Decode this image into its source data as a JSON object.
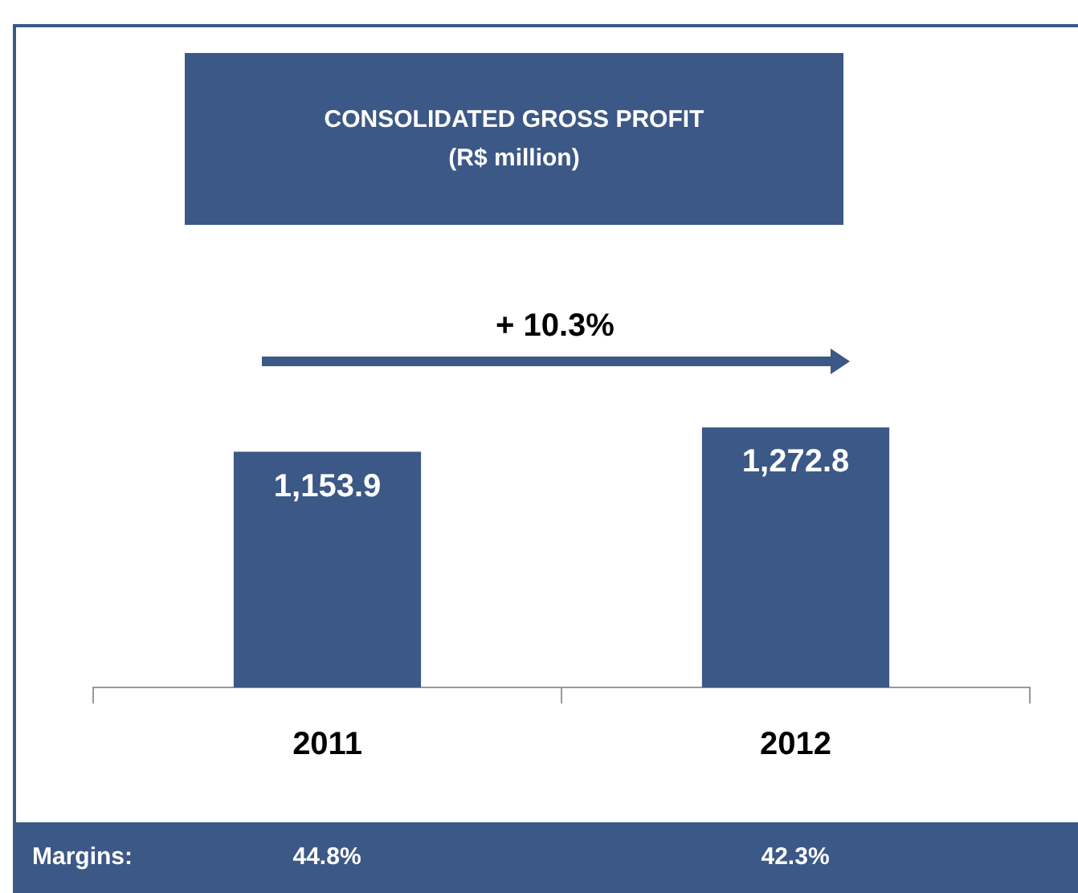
{
  "chart_data": {
    "type": "bar",
    "title": "CONSOLIDATED GROSS PROFIT",
    "subtitle": "(R$ million)",
    "categories": [
      "2011",
      "2012"
    ],
    "values": [
      1153.9,
      1272.8
    ],
    "value_labels": [
      "1,153.9",
      "1,272.8"
    ],
    "color": "#3b5886",
    "grid": false,
    "legend": false,
    "annotations": [
      "+ 10.3%",
      "Margins:",
      "44.8%",
      "42.3%"
    ]
  }
}
